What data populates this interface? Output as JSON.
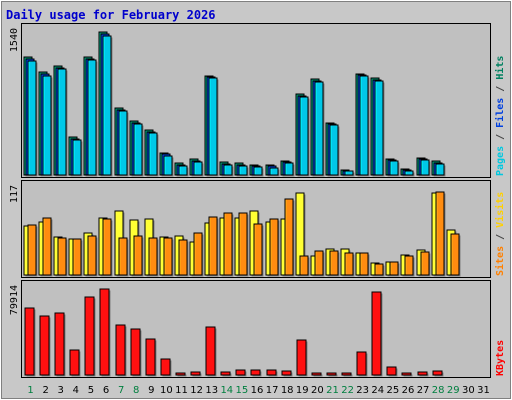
{
  "chart_data": [
    {
      "type": "bar",
      "title": "Daily usage for February 2026",
      "ymax_label": "1540",
      "ylim": [
        0,
        1540
      ],
      "right_label": [
        {
          "text": "Pages",
          "color": "#00c8e0"
        },
        {
          "text": " / ",
          "color": "#444444"
        },
        {
          "text": "Files",
          "color": "#0040e0"
        },
        {
          "text": " / ",
          "color": "#444444"
        },
        {
          "text": "Hits",
          "color": "#008060"
        }
      ],
      "categories": [
        "1",
        "2",
        "3",
        "4",
        "5",
        "6",
        "7",
        "8",
        "9",
        "10",
        "11",
        "12",
        "13",
        "14",
        "15",
        "16",
        "17",
        "18",
        "19",
        "20",
        "21",
        "22",
        "23",
        "24",
        "25",
        "26",
        "27",
        "28",
        "29",
        "30",
        "31"
      ],
      "series": [
        {
          "name": "Hits",
          "color": "#009070",
          "values": [
            1262,
            1103,
            1165,
            407,
            1265,
            1530,
            716,
            581,
            482,
            235,
            125,
            174,
            1063,
            142,
            126,
            112,
            112,
            155,
            864,
            1030,
            556,
            55,
            1085,
            1038,
            172,
            65,
            184,
            149,
            0,
            0,
            0
          ]
        },
        {
          "name": "Files",
          "color": "#0040e0",
          "values": [
            1240,
            1083,
            1145,
            389,
            1245,
            1507,
            696,
            561,
            462,
            221,
            107,
            155,
            1043,
            122,
            111,
            97,
            96,
            140,
            844,
            1010,
            542,
            42,
            1065,
            1018,
            157,
            51,
            169,
            129,
            0,
            0,
            0
          ]
        },
        {
          "name": "Pages",
          "color": "#00c8e8",
          "values": [
            1219,
            1063,
            1135,
            379,
            1227,
            1488,
            688,
            546,
            447,
            207,
            100,
            140,
            1035,
            106,
            95,
            81,
            79,
            125,
            835,
            998,
            536,
            39,
            1057,
            1009,
            148,
            42,
            160,
            115,
            0,
            0,
            0
          ]
        }
      ]
    },
    {
      "type": "bar",
      "ymax_label": "117",
      "ylim": [
        0,
        117
      ],
      "right_label": [
        {
          "text": "Sites",
          "color": "#ff8000"
        },
        {
          "text": " / ",
          "color": "#444444"
        },
        {
          "text": "Visits",
          "color": "#ffd000"
        }
      ],
      "categories": [
        "1",
        "2",
        "3",
        "4",
        "5",
        "6",
        "7",
        "8",
        "9",
        "10",
        "11",
        "12",
        "13",
        "14",
        "15",
        "16",
        "17",
        "18",
        "19",
        "20",
        "21",
        "22",
        "23",
        "24",
        "25",
        "26",
        "27",
        "28",
        "29",
        "30",
        "31"
      ],
      "series": [
        {
          "name": "Visits",
          "color": "#ffff33",
          "values": [
            66,
            71,
            51,
            48,
            57,
            77,
            86,
            74,
            75,
            51,
            52,
            44,
            70,
            77,
            77,
            86,
            71,
            75,
            110,
            26,
            35,
            35,
            30,
            16,
            18,
            27,
            33,
            110,
            61,
            0,
            0
          ]
        },
        {
          "name": "Sites",
          "color": "#ff8c10",
          "values": [
            67,
            76,
            50,
            48,
            53,
            75,
            50,
            52,
            50,
            50,
            47,
            57,
            78,
            83,
            83,
            68,
            75,
            102,
            25,
            32,
            32,
            30,
            29,
            15,
            17,
            25,
            31,
            112,
            55,
            0,
            0
          ]
        }
      ]
    },
    {
      "type": "bar",
      "ymax_label": "79914",
      "ylim": [
        0,
        79914
      ],
      "right_label": [
        {
          "text": "KBytes",
          "color": "#ff0000"
        }
      ],
      "categories": [
        "1",
        "2",
        "3",
        "4",
        "5",
        "6",
        "7",
        "8",
        "9",
        "10",
        "11",
        "12",
        "13",
        "14",
        "15",
        "16",
        "17",
        "18",
        "19",
        "20",
        "21",
        "22",
        "23",
        "24",
        "25",
        "26",
        "27",
        "28",
        "29",
        "30",
        "31"
      ],
      "series": [
        {
          "name": "KBytes",
          "color": "#ff1010",
          "values": [
            61500,
            54500,
            56500,
            23300,
            71500,
            79200,
            45500,
            42000,
            33300,
            14400,
            2000,
            2500,
            43700,
            3000,
            4500,
            4500,
            4300,
            3500,
            31700,
            2000,
            2000,
            2000,
            21500,
            76400,
            7000,
            2000,
            3000,
            3500,
            0,
            0,
            0
          ]
        }
      ]
    }
  ],
  "colors": {
    "title": "#0000cc",
    "weekend_label": "#007f3f",
    "weekday_label": "#000000",
    "panel_bg": "#c0c0c0",
    "frame_bg": "#c8c8c8"
  },
  "weekend_days": [
    "1",
    "7",
    "8",
    "14",
    "15",
    "21",
    "22",
    "28",
    "29"
  ]
}
